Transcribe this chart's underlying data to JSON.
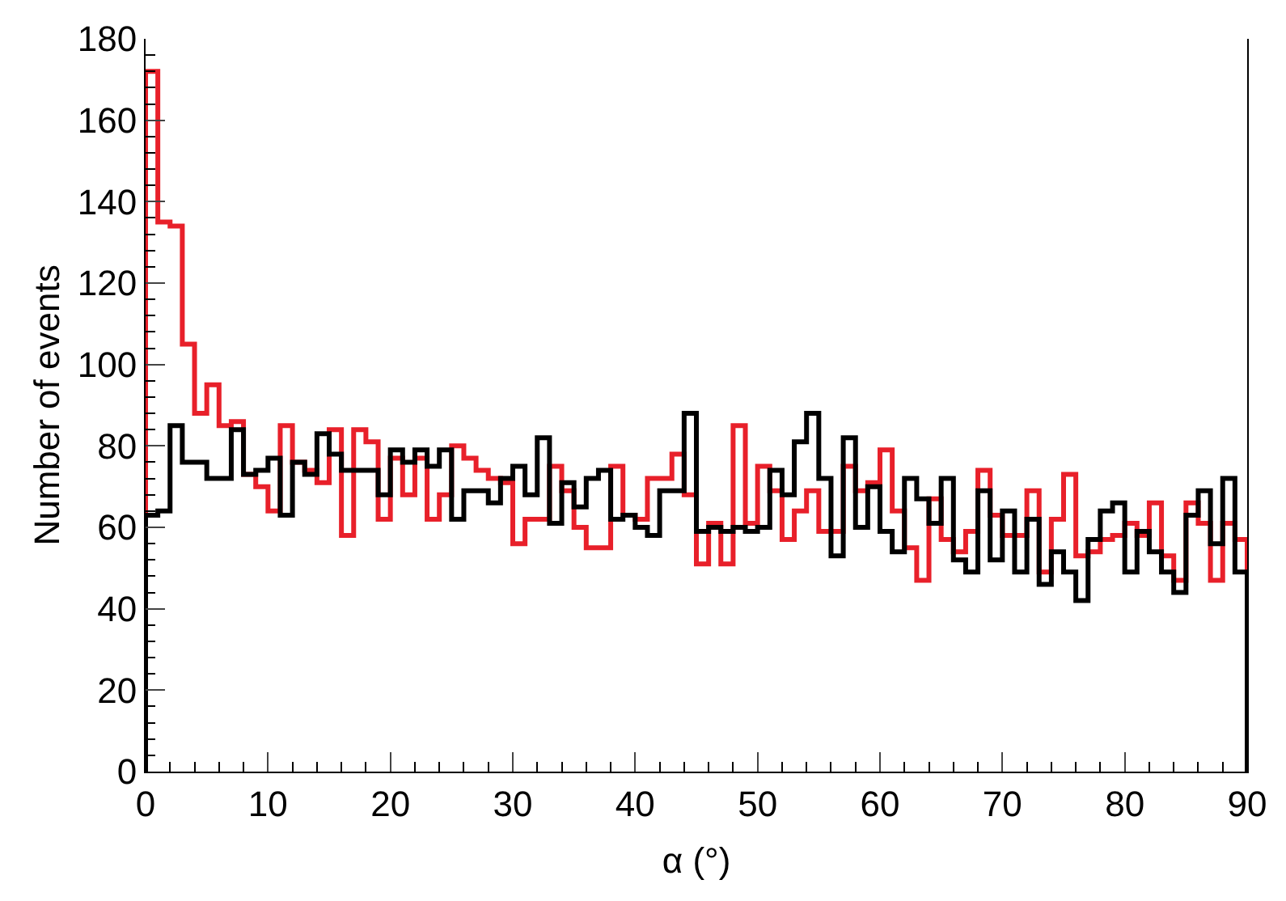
{
  "chart_data": {
    "type": "histogram",
    "xlabel": "α (°)",
    "ylabel": "Number of events",
    "bins": [
      0,
      1,
      2,
      3,
      4,
      5,
      6,
      7,
      8,
      9,
      10,
      11,
      12,
      13,
      14,
      15,
      16,
      17,
      18,
      19,
      20,
      21,
      22,
      23,
      24,
      25,
      26,
      27,
      28,
      29,
      30,
      31,
      32,
      33,
      34,
      35,
      36,
      37,
      38,
      39,
      40,
      41,
      42,
      43,
      44,
      45,
      46,
      47,
      48,
      49,
      50,
      51,
      52,
      53,
      54,
      55,
      56,
      57,
      58,
      59,
      60,
      61,
      62,
      63,
      64,
      65,
      66,
      67,
      68,
      69,
      70,
      71,
      72,
      73,
      74,
      75,
      76,
      77,
      78,
      79,
      80,
      81,
      82,
      83,
      84,
      85,
      86,
      87,
      88,
      89,
      90
    ],
    "series": [
      {
        "color": "#e8202a",
        "values": [
          172,
          135,
          134,
          105,
          88,
          95,
          85,
          86,
          73,
          70,
          64,
          85,
          76,
          74,
          71,
          84,
          58,
          84,
          81,
          62,
          77,
          68,
          77,
          62,
          68,
          80,
          77,
          74,
          72,
          71,
          56,
          62,
          62,
          75,
          69,
          60,
          55,
          55,
          75,
          63,
          62,
          72,
          72,
          78,
          68,
          51,
          61,
          51,
          85,
          61,
          75,
          69,
          57,
          64,
          69,
          59,
          59,
          75,
          69,
          71,
          79,
          64,
          55,
          47,
          67,
          57,
          54,
          59,
          74,
          63,
          58,
          58,
          69,
          49,
          62,
          73,
          53,
          54,
          57,
          58,
          61,
          58,
          66,
          53,
          47,
          66,
          61,
          47,
          61,
          57
        ]
      },
      {
        "color": "#000000",
        "values": [
          63,
          64,
          85,
          76,
          76,
          72,
          72,
          84,
          73,
          74,
          77,
          63,
          76,
          73,
          83,
          78,
          74,
          74,
          74,
          68,
          79,
          76,
          79,
          75,
          79,
          62,
          69,
          69,
          66,
          72,
          75,
          68,
          82,
          61,
          71,
          65,
          72,
          74,
          62,
          63,
          60,
          58,
          69,
          69,
          88,
          59,
          60,
          59,
          60,
          59,
          60,
          74,
          68,
          81,
          88,
          72,
          53,
          82,
          60,
          70,
          59,
          54,
          72,
          67,
          61,
          72,
          52,
          49,
          69,
          52,
          64,
          49,
          62,
          46,
          54,
          49,
          42,
          57,
          64,
          66,
          49,
          59,
          54,
          49,
          44,
          63,
          69,
          56,
          72,
          49
        ]
      }
    ],
    "xlim": [
      0,
      90
    ],
    "xticks": [
      0,
      10,
      20,
      30,
      40,
      50,
      60,
      70,
      80,
      90
    ],
    "ylim": [
      0,
      180
    ],
    "yticks": [
      0,
      20,
      40,
      60,
      80,
      100,
      120,
      140,
      160,
      180
    ]
  }
}
